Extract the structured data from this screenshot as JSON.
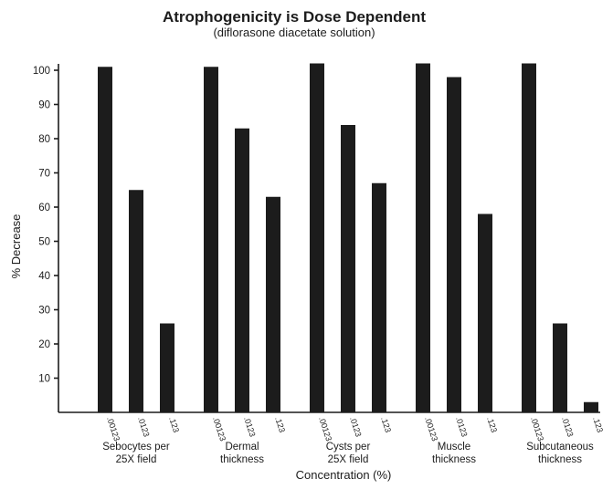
{
  "chart_data": {
    "type": "bar",
    "title": "Atrophogenicity is Dose Dependent",
    "subtitle": "(diflorasone diacetate solution)",
    "xlabel": "Concentration (%)",
    "ylabel": "% Decrease",
    "ylim": [
      0,
      100
    ],
    "yticks": [
      "10",
      "20",
      "30",
      "40",
      "50",
      "60",
      "70",
      "80",
      "90",
      "100"
    ],
    "concentrations": [
      ".00123",
      ".0123",
      ".123"
    ],
    "groups": [
      {
        "label_lines": [
          "Sebocytes per",
          "25X field"
        ],
        "values": [
          101,
          65,
          26
        ]
      },
      {
        "label_lines": [
          "Dermal",
          "thickness"
        ],
        "values": [
          101,
          83,
          63
        ]
      },
      {
        "label_lines": [
          "Cysts per",
          "25X field"
        ],
        "values": [
          102,
          84,
          67
        ]
      },
      {
        "label_lines": [
          "Muscle",
          "thickness"
        ],
        "values": [
          102,
          98,
          58
        ]
      },
      {
        "label_lines": [
          "Subcutaneous",
          "thickness"
        ],
        "values": [
          102,
          26,
          3
        ]
      }
    ],
    "grid": false,
    "legend": "none",
    "bar_color": "#1c1c1c"
  }
}
